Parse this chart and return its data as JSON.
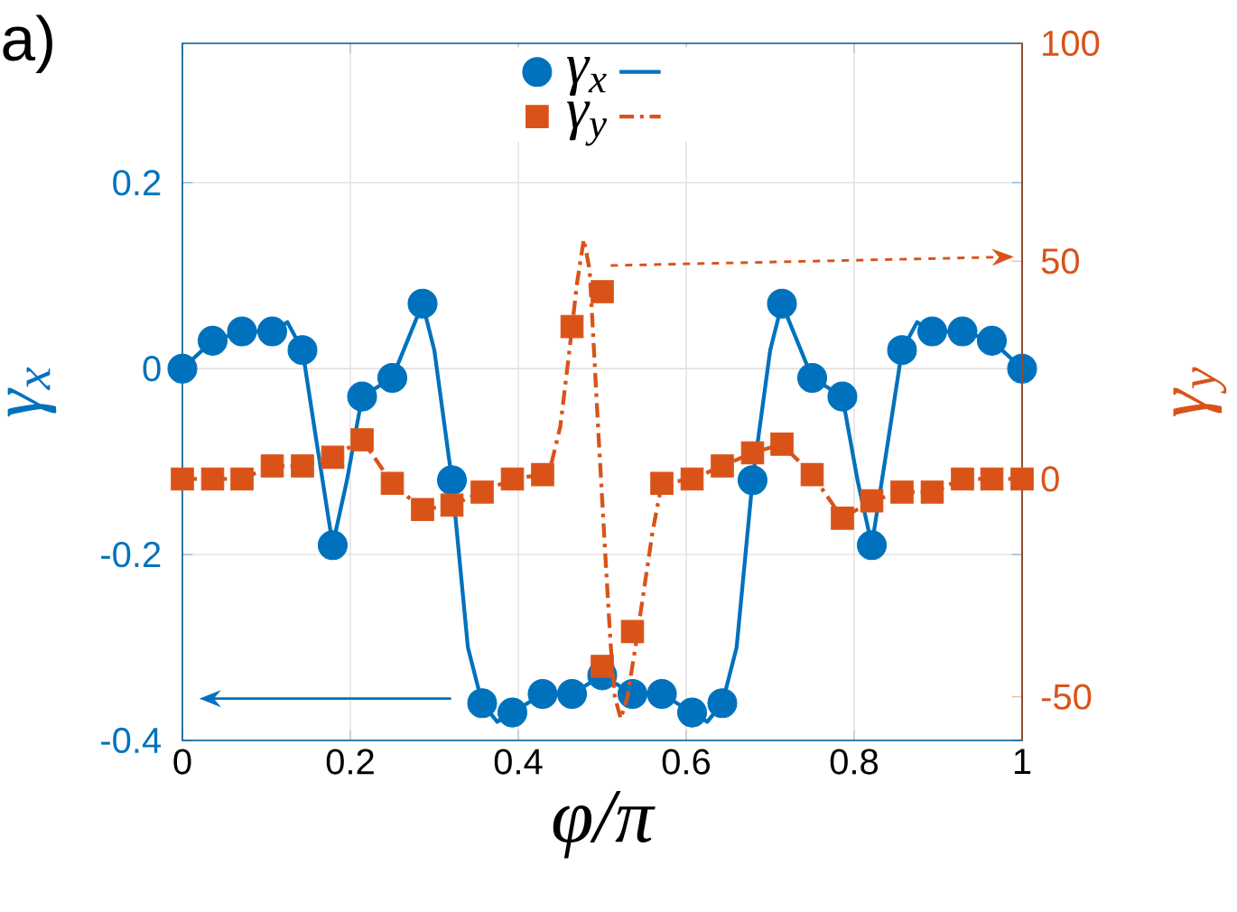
{
  "chart_data": {
    "type": "line",
    "annotations": [
      "a)"
    ],
    "xlabel": "φ/π",
    "ylabel": "γ$_{x}$",
    "y2label": "γ$_{y}$",
    "xlim": [
      0,
      1
    ],
    "xticks": [
      0,
      0.2,
      0.4,
      0.6,
      0.8,
      1
    ],
    "ylim": [
      -0.4,
      0.35
    ],
    "yticks": [
      -0.4,
      -0.2,
      0,
      0.2
    ],
    "y2lim": [
      -60,
      100
    ],
    "y2ticks": [
      -50,
      0,
      50,
      100
    ],
    "grid": true,
    "legend": "top",
    "series": [
      {
        "name": "γ$_{x}$",
        "type": "scatter",
        "marker": "circle",
        "color": "#0072bd",
        "x": [
          0,
          0.036,
          0.071,
          0.107,
          0.143,
          0.179,
          0.214,
          0.25,
          0.286,
          0.321,
          0.357,
          0.393,
          0.429,
          0.464,
          0.5,
          0.536,
          0.571,
          0.607,
          0.643,
          0.679,
          0.714,
          0.75,
          0.786,
          0.821,
          0.857,
          0.893,
          0.929,
          0.964,
          1
        ],
        "values": [
          0,
          0.03,
          0.04,
          0.04,
          0.02,
          -0.19,
          -0.03,
          -0.01,
          0.07,
          -0.12,
          -0.36,
          -0.37,
          -0.35,
          -0.35,
          -0.33,
          -0.35,
          -0.35,
          -0.37,
          -0.36,
          -0.12,
          0.07,
          -0.01,
          -0.03,
          -0.19,
          0.02,
          0.04,
          0.04,
          0.03,
          0
        ]
      },
      {
        "line_style": "solid",
        "color": "#0072bd",
        "x": [
          0,
          0.036,
          0.071,
          0.107,
          0.125,
          0.143,
          0.16,
          0.179,
          0.196,
          0.214,
          0.25,
          0.268,
          0.286,
          0.3,
          0.321,
          0.34,
          0.357,
          0.375,
          0.393,
          0.429,
          0.464,
          0.5,
          0.536,
          0.571,
          0.607,
          0.625,
          0.643,
          0.66,
          0.679,
          0.7,
          0.714,
          0.732,
          0.75,
          0.786,
          0.804,
          0.821,
          0.84,
          0.857,
          0.875,
          0.893,
          0.929,
          0.964,
          1
        ],
        "values": [
          0,
          0.03,
          0.04,
          0.04,
          0.05,
          0.02,
          -0.08,
          -0.19,
          -0.12,
          -0.03,
          -0.01,
          0.03,
          0.07,
          0.02,
          -0.12,
          -0.3,
          -0.36,
          -0.38,
          -0.37,
          -0.35,
          -0.35,
          -0.33,
          -0.35,
          -0.35,
          -0.37,
          -0.38,
          -0.36,
          -0.3,
          -0.12,
          0.02,
          0.07,
          0.03,
          -0.01,
          -0.03,
          -0.12,
          -0.19,
          -0.08,
          0.02,
          0.05,
          0.04,
          0.04,
          0.03,
          0
        ]
      },
      {
        "name": "γ$_{y}$",
        "type": "scatter",
        "marker": "square",
        "axis": "y2",
        "color": "#d95319",
        "x": [
          0,
          0.036,
          0.071,
          0.107,
          0.143,
          0.179,
          0.214,
          0.25,
          0.286,
          0.321,
          0.357,
          0.393,
          0.429,
          0.464,
          0.5,
          0.5,
          0.536,
          0.571,
          0.607,
          0.643,
          0.679,
          0.714,
          0.75,
          0.786,
          0.821,
          0.857,
          0.893,
          0.929,
          0.964,
          1
        ],
        "values": [
          0,
          0,
          0,
          3,
          3,
          5,
          9,
          -1,
          -7,
          -6,
          -3,
          0,
          1,
          35,
          43,
          -43,
          -35,
          -1,
          0,
          3,
          6,
          8,
          1,
          -9,
          -5,
          -3,
          -3,
          0,
          0,
          0
        ]
      },
      {
        "line_style": "dashdot",
        "axis": "y2",
        "color": "#d95319",
        "x": [
          0,
          0.036,
          0.071,
          0.107,
          0.143,
          0.179,
          0.214,
          0.25,
          0.286,
          0.321,
          0.357,
          0.393,
          0.429,
          0.44,
          0.45,
          0.46,
          0.47,
          0.478,
          0.485,
          0.49,
          0.495,
          0.5,
          0.505,
          0.51,
          0.515,
          0.522,
          0.53,
          0.54,
          0.55,
          0.56,
          0.571,
          0.607,
          0.643,
          0.679,
          0.714,
          0.75,
          0.786,
          0.821,
          0.857,
          0.893,
          0.929,
          0.964,
          1
        ],
        "values": [
          0,
          0,
          0,
          3,
          3,
          5,
          9,
          -1,
          -7,
          -6,
          -3,
          0,
          1,
          4,
          12,
          28,
          45,
          55,
          48,
          30,
          12,
          -5,
          -22,
          -38,
          -50,
          -55,
          -50,
          -38,
          -25,
          -12,
          -1,
          0,
          3,
          6,
          8,
          1,
          -9,
          -5,
          -3,
          -3,
          0,
          0,
          0
        ]
      }
    ]
  }
}
